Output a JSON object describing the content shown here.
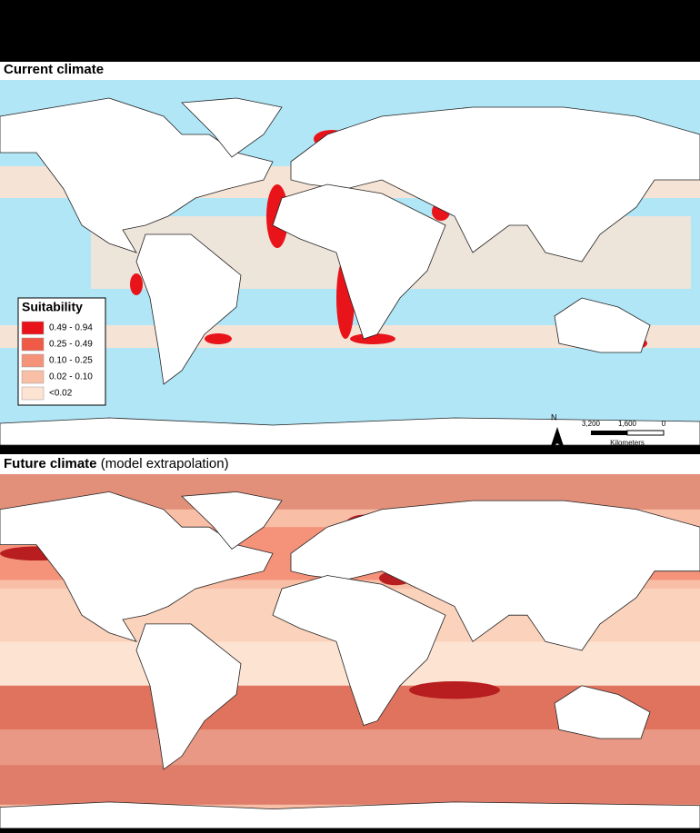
{
  "panels": [
    {
      "title": "Current climate",
      "subtitle": null
    },
    {
      "title": "Future climate",
      "subtitle": "(model extrapolation)"
    }
  ],
  "legend": {
    "title": "Suitability",
    "items": [
      {
        "label": "0.49 - 0.94",
        "color": "#e8141a"
      },
      {
        "label": "0.25 - 0.49",
        "color": "#ef5b47"
      },
      {
        "label": "0.10 - 0.25",
        "color": "#f4927a"
      },
      {
        "label": "0.02 - 0.10",
        "color": "#f8bea6"
      },
      {
        "label": "<0.02",
        "color": "#fde3d2"
      }
    ]
  },
  "scale_bar": {
    "labels": [
      "3,200",
      "1,600",
      "0"
    ],
    "unit": "Kilometers"
  },
  "north_arrow": "N"
}
